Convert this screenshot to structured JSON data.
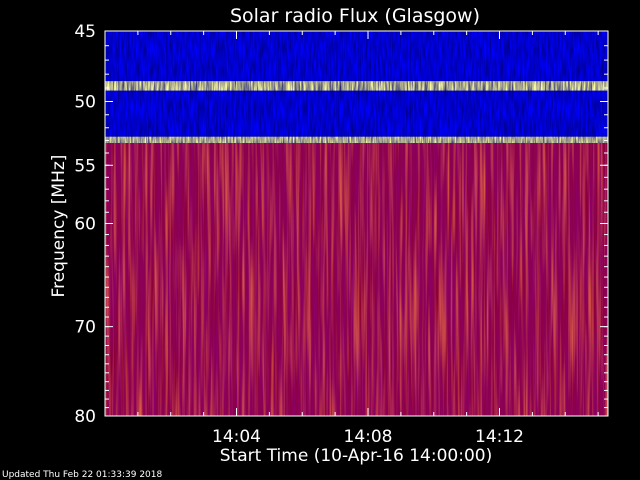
{
  "chart_data": {
    "type": "heatmap",
    "title": "Solar radio Flux (Glasgow)",
    "ylabel": "Frequency [MHz]",
    "xlabel": "Start Time (10-Apr-16 14:00:00)",
    "footer": "Updated Thu Feb 22 01:33:39 2018",
    "x_axis": {
      "unit": "minutes after 14:00",
      "range": [
        0,
        15.3
      ],
      "ticks": [
        {
          "value": 4,
          "label": "14:04"
        },
        {
          "value": 8,
          "label": "14:08"
        },
        {
          "value": 12,
          "label": "14:12"
        }
      ]
    },
    "y_axis": {
      "unit": "MHz",
      "scale": "log",
      "range": [
        45,
        80
      ],
      "inverted": true,
      "ticks": [
        {
          "value": 45,
          "label": "45"
        },
        {
          "value": 50,
          "label": "50"
        },
        {
          "value": 55,
          "label": "55"
        },
        {
          "value": 60,
          "label": "60"
        },
        {
          "value": 70,
          "label": "70"
        },
        {
          "value": 80,
          "label": "80"
        }
      ]
    },
    "colormap": [
      "#000040",
      "#0000ff",
      "#ff0000",
      "#ffffa0"
    ],
    "bands": [
      {
        "from": 45,
        "to": 48.5,
        "level": "low"
      },
      {
        "from": 48.5,
        "to": 49.2,
        "level": "saturated"
      },
      {
        "from": 49.2,
        "to": 52.7,
        "level": "low"
      },
      {
        "from": 52.7,
        "to": 53.2,
        "level": "saturated"
      },
      {
        "from": 53.2,
        "to": 80,
        "level": "high"
      }
    ]
  }
}
